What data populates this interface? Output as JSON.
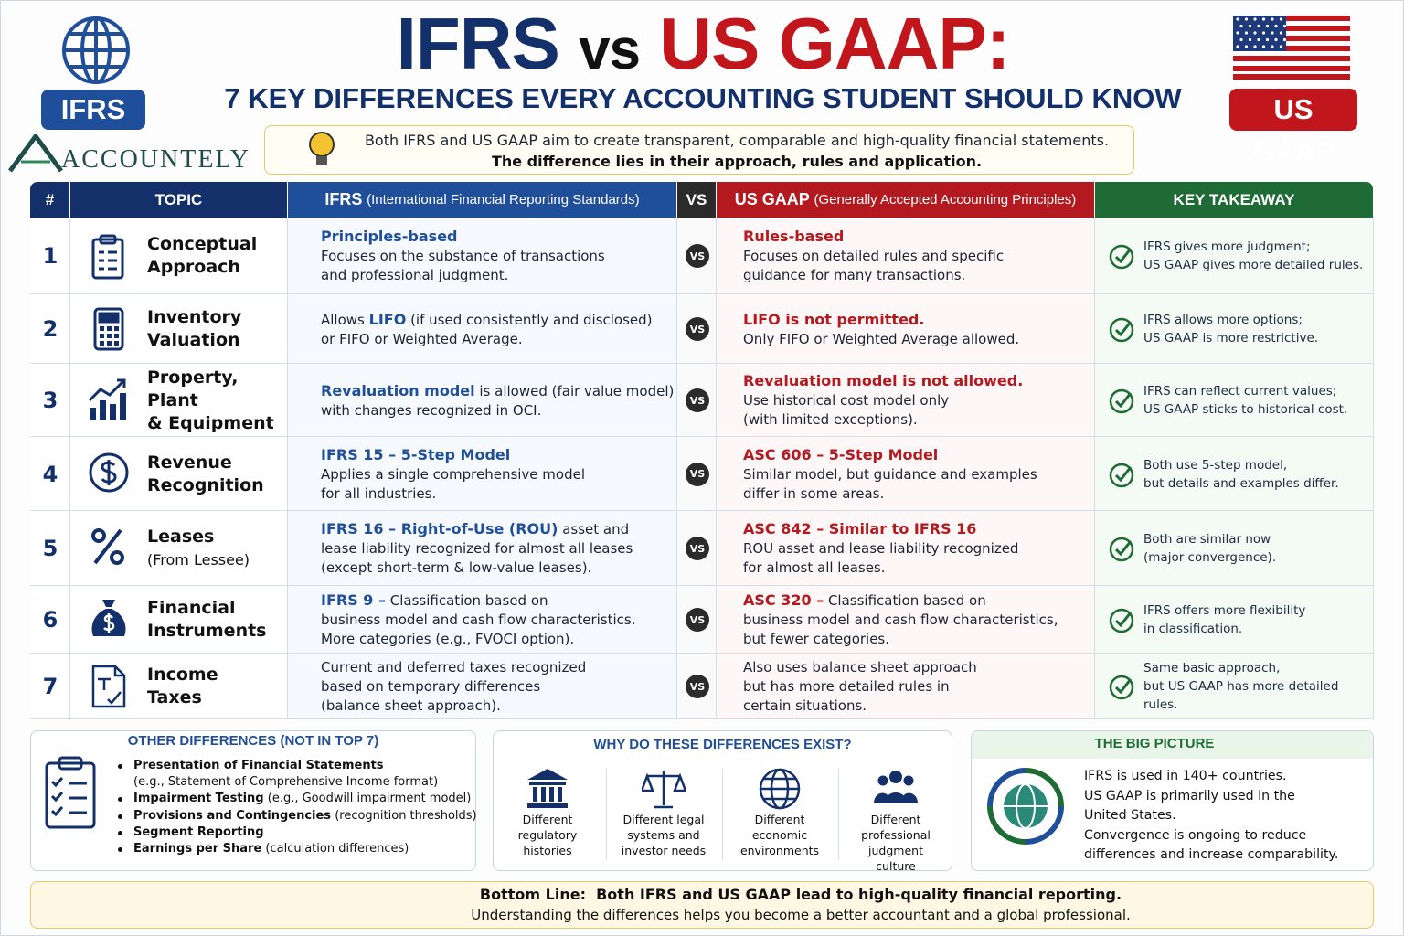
{
  "header": {
    "title_left": "IFRS",
    "title_vs": "vs",
    "title_right": "US GAAP:",
    "subtitle": "7 KEY DIFFERENCES EVERY ACCOUNTING STUDENT SHOULD KNOW",
    "badge_left": "IFRS",
    "badge_right": "US GAAP",
    "brand": "ACCOUNTELY",
    "intro": [
      [
        "Both IFRS and US GAAP aim to create transparent, comparable and high-quality financial statements."
      ],
      [
        {
          "strong": "The difference lies in their approach, rules and application."
        }
      ]
    ]
  },
  "table": {
    "columns": {
      "num": "#",
      "topic": "TOPIC",
      "ifrs": {
        "name": "IFRS",
        "note": "(International Financial Reporting Standards)"
      },
      "vs": "VS",
      "gaap": {
        "name": "US GAAP",
        "note": "(Generally Accepted Accounting Principles)"
      },
      "takeaway": "KEY TAKEAWAY"
    },
    "vs_badge": "VS",
    "rows": [
      {
        "num": "1",
        "topic": [
          "Conceptual",
          "Approach"
        ],
        "ifrs": [
          [
            {
              "strong": "Principles-based"
            }
          ],
          [
            "Focuses on the substance of transactions"
          ],
          [
            "and professional judgment."
          ]
        ],
        "gaap": [
          [
            {
              "strong": "Rules-based"
            }
          ],
          [
            "Focuses on detailed rules and specific"
          ],
          [
            "guidance for many transactions."
          ]
        ],
        "takeaway": [
          "IFRS gives more judgment;",
          "US GAAP gives more detailed rules."
        ]
      },
      {
        "num": "2",
        "topic": [
          "Inventory",
          "Valuation"
        ],
        "ifrs": [
          [
            "Allows ",
            {
              "strong": "LIFO"
            },
            " (if used consistently and disclosed)"
          ],
          [
            "or FIFO or Weighted Average."
          ]
        ],
        "gaap": [
          [
            {
              "strong": "LIFO is not permitted."
            }
          ],
          [
            "Only FIFO or Weighted Average allowed."
          ]
        ],
        "takeaway": [
          "IFRS allows more options;",
          "US GAAP is more restrictive."
        ]
      },
      {
        "num": "3",
        "topic": [
          "Property, Plant",
          "& Equipment"
        ],
        "ifrs": [
          [
            {
              "strong": "Revaluation model"
            },
            " is allowed (fair value model)"
          ],
          [
            "with changes recognized in OCI."
          ]
        ],
        "gaap": [
          [
            {
              "strong": "Revaluation model is not allowed."
            }
          ],
          [
            "Use historical cost model only"
          ],
          [
            "(with limited exceptions)."
          ]
        ],
        "takeaway": [
          "IFRS can reflect current values;",
          "US GAAP sticks to historical cost."
        ]
      },
      {
        "num": "4",
        "topic": [
          "Revenue",
          "Recognition"
        ],
        "ifrs": [
          [
            {
              "strong": "IFRS 15 – 5-Step Model"
            }
          ],
          [
            "Applies a single comprehensive model"
          ],
          [
            "for all industries."
          ]
        ],
        "gaap": [
          [
            {
              "strong": "ASC 606 – 5-Step Model"
            }
          ],
          [
            "Similar model, but guidance and examples"
          ],
          [
            "differ in some areas."
          ]
        ],
        "takeaway": [
          "Both use 5-step model,",
          "but details and examples differ."
        ]
      },
      {
        "num": "5",
        "topic": [
          "Leases"
        ],
        "topic_note": "(From Lessee)",
        "ifrs": [
          [
            {
              "strong": "IFRS 16 – Right-of-Use (ROU)"
            },
            " asset and"
          ],
          [
            "lease liability recognized for almost all leases"
          ],
          [
            "(except short-term & low-value leases)."
          ]
        ],
        "gaap": [
          [
            {
              "strong": "ASC 842 – Similar to IFRS 16"
            }
          ],
          [
            "ROU asset and lease liability recognized"
          ],
          [
            "for almost all leases."
          ]
        ],
        "takeaway": [
          "Both are similar now",
          "(major convergence)."
        ]
      },
      {
        "num": "6",
        "topic": [
          "Financial",
          "Instruments"
        ],
        "ifrs": [
          [
            {
              "strong": "IFRS 9 –"
            },
            " Classification based on"
          ],
          [
            "business model and cash flow characteristics."
          ],
          [
            "More categories (e.g., FVOCI option)."
          ]
        ],
        "gaap": [
          [
            {
              "strong": "ASC 320 –"
            },
            " Classification based on"
          ],
          [
            "business model and cash flow characteristics,"
          ],
          [
            "but fewer categories."
          ]
        ],
        "takeaway": [
          "IFRS offers more flexibility",
          "in classification."
        ]
      },
      {
        "num": "7",
        "topic": [
          "Income",
          "Taxes"
        ],
        "ifrs": [
          [
            "Current and deferred taxes recognized"
          ],
          [
            "based on temporary differences"
          ],
          [
            "(balance sheet approach)."
          ]
        ],
        "gaap": [
          [
            "Also uses balance sheet approach"
          ],
          [
            "but has more detailed rules in"
          ],
          [
            "certain situations."
          ]
        ],
        "takeaway": [
          "Same basic approach,",
          "but US GAAP has more detailed rules."
        ]
      }
    ]
  },
  "other": {
    "title": "OTHER DIFFERENCES (NOT IN TOP 7)",
    "items": [
      [
        [
          {
            "strong": "Presentation of Financial Statements"
          }
        ],
        [
          "(e.g., Statement of Comprehensive Income format)"
        ]
      ],
      [
        [
          {
            "strong": "Impairment Testing"
          },
          " (e.g., Goodwill impairment model)"
        ]
      ],
      [
        [
          {
            "strong": "Provisions and Contingencies"
          },
          " (recognition thresholds)"
        ]
      ],
      [
        [
          {
            "strong": "Segment Reporting"
          }
        ]
      ],
      [
        [
          {
            "strong": "Earnings per Share"
          },
          " (calculation differences)"
        ]
      ]
    ]
  },
  "why": {
    "title": "WHY DO THESE DIFFERENCES EXIST?",
    "items": [
      [
        "Different",
        "regulatory",
        "histories"
      ],
      [
        "Different legal",
        "systems and",
        "investor needs"
      ],
      [
        "Different",
        "economic",
        "environments"
      ],
      [
        "Different",
        "professional",
        "judgment",
        "culture"
      ]
    ]
  },
  "big_picture": {
    "title": "THE BIG PICTURE",
    "lines": [
      "IFRS is used in 140+ countries.",
      "US GAAP is primarily used in the",
      "United States.",
      "Convergence is ongoing to reduce",
      "differences and increase comparability."
    ]
  },
  "bottom_line": [
    [
      {
        "strong": "Bottom Line:  Both IFRS and US GAAP lead to high-quality financial reporting."
      }
    ],
    [
      "Understanding the differences helps you become a better accountant and a global professional."
    ]
  ]
}
